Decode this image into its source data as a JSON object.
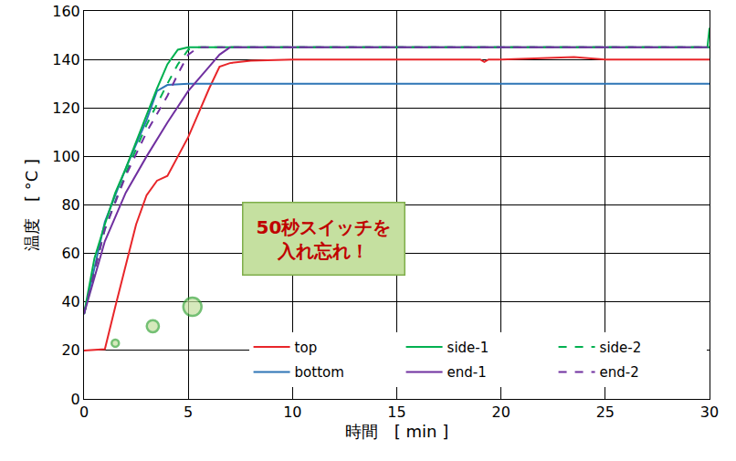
{
  "chart_data": {
    "type": "line",
    "x_label": "時間　[ min ]",
    "y_label": "温度　[ °C ]",
    "xlim": [
      0,
      30
    ],
    "xticks": [
      0,
      5,
      10,
      15,
      20,
      25,
      30
    ],
    "ylim": [
      0,
      160
    ],
    "yticks": [
      0,
      20,
      40,
      60,
      80,
      100,
      120,
      140,
      160
    ],
    "grid": true,
    "legend": "lower right",
    "series": [
      {
        "name": "top",
        "color": "#e8262a",
        "line_style": "solid",
        "x": [
          0,
          1.0,
          1.5,
          2,
          2.5,
          3,
          3.5,
          4,
          4.5,
          5,
          5.5,
          6,
          6.5,
          7,
          8,
          10,
          15,
          19,
          19.2,
          19.4,
          20,
          23.5,
          25,
          30
        ],
        "values": [
          20,
          20.5,
          38,
          55,
          72,
          84,
          90,
          92,
          100,
          108,
          118,
          128,
          137,
          138.5,
          139.5,
          140,
          140,
          140,
          139,
          140,
          140,
          141,
          140,
          140
        ]
      },
      {
        "name": "bottom",
        "color": "#2e75b6",
        "line_style": "solid",
        "x": [
          0,
          1,
          2,
          3,
          3.5,
          4,
          5,
          10,
          20,
          25,
          30
        ],
        "values": [
          35,
          73,
          95,
          115,
          127,
          129.5,
          130,
          130,
          130,
          130,
          130
        ]
      },
      {
        "name": "side-1",
        "color": "#00b050",
        "line_style": "solid",
        "x": [
          0,
          0.5,
          1,
          1.5,
          2,
          2.5,
          3,
          3.5,
          4,
          4.5,
          5,
          29.9,
          30
        ],
        "values": [
          35,
          58,
          72,
          85,
          95,
          106,
          117,
          128,
          138,
          144,
          145,
          145,
          153
        ]
      },
      {
        "name": "end-1",
        "color": "#7030a0",
        "line_style": "solid",
        "x": [
          0,
          1,
          2,
          3,
          4,
          5,
          6,
          6.5,
          7,
          30
        ],
        "values": [
          35,
          65,
          85,
          100,
          114,
          127,
          137,
          142,
          145,
          145
        ]
      },
      {
        "name": "side-2",
        "color": "#00b050",
        "line_style": "dash",
        "x": [
          0,
          1,
          2,
          3,
          4,
          4.5,
          5,
          5.5,
          30
        ],
        "values": [
          35,
          70,
          93,
          113,
          130,
          138,
          144,
          145,
          145
        ]
      },
      {
        "name": "end-2",
        "color": "#7030a0",
        "line_style": "dash",
        "x": [
          0,
          1,
          2,
          3,
          4,
          4.5,
          5,
          5.5,
          30
        ],
        "values": [
          35,
          70,
          92,
          110,
          125,
          134,
          142,
          145,
          145
        ]
      }
    ],
    "annotations": [
      {
        "lines": [
          "50秒スイッチを",
          "入れ忘れ！"
        ],
        "x": 11.5,
        "y": 66,
        "color": "#c00000"
      }
    ],
    "dots": {
      "x": [
        1.5,
        3.3,
        5.2
      ],
      "y": [
        23,
        30,
        38
      ],
      "size": [
        3,
        5,
        7.5
      ],
      "color": "#3aa63a"
    }
  }
}
